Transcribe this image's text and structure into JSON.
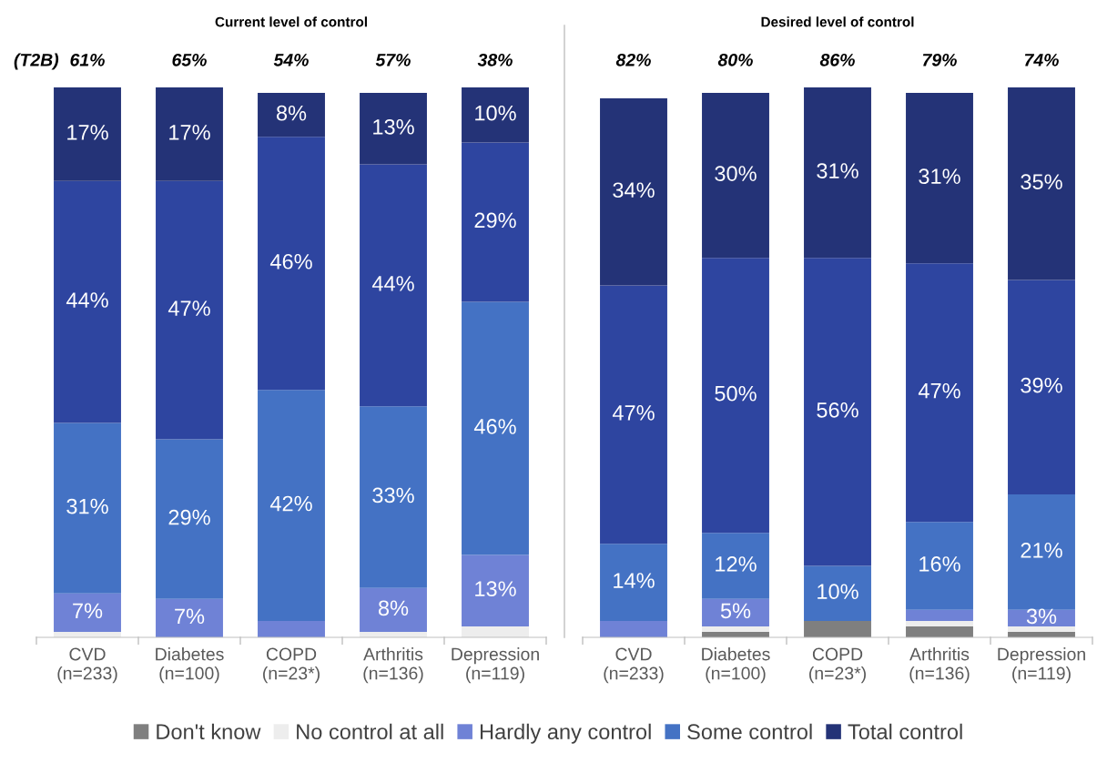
{
  "chart_data": [
    {
      "type": "bar",
      "stacked": true,
      "title": "Current level of control",
      "categories": [
        "CVD\n(n=233)",
        "Diabetes\n(n=100)",
        "COPD\n(n=23*)",
        "Arthritis\n(n=136)",
        "Depression\n(n=119)"
      ],
      "series": [
        {
          "color": "#ededed",
          "values": [
            1,
            0,
            0,
            1,
            2
          ],
          "value_labels": [
            null,
            null,
            null,
            null,
            null
          ]
        },
        {
          "color": "#6f82d6",
          "values": [
            7,
            7,
            3,
            8,
            13
          ],
          "value_labels": [
            "7%",
            "7%",
            null,
            "8%",
            "13%"
          ]
        },
        {
          "color": "#4472c4",
          "values": [
            31,
            29,
            42,
            33,
            46
          ],
          "value_labels": [
            "31%",
            "29%",
            "42%",
            "33%",
            "46%"
          ]
        },
        {
          "color": "#2e45a0",
          "values": [
            44,
            47,
            46,
            44,
            29
          ],
          "value_labels": [
            "44%",
            "47%",
            "46%",
            "44%",
            "29%"
          ]
        },
        {
          "color": "#243377",
          "values": [
            17,
            17,
            8,
            13,
            10
          ],
          "value_labels": [
            "17%",
            "17%",
            "8%",
            "13%",
            "10%"
          ]
        }
      ],
      "annotations": [
        "(T2B)",
        "61%",
        "65%",
        "54%",
        "57%",
        "38%"
      ],
      "tick_labels": "x",
      "grid": false
    },
    {
      "type": "bar",
      "stacked": true,
      "title": "Desired level of control",
      "categories": [
        "CVD\n(n=233)",
        "Diabetes\n(n=100)",
        "COPD\n(n=23*)",
        "Arthritis\n(n=136)",
        "Depression\n(n=119)"
      ],
      "series": [
        {
          "name": "Don't know",
          "color": "#7f7f7f",
          "values": [
            0,
            1,
            3,
            2,
            1
          ],
          "value_labels": [
            null,
            null,
            null,
            null,
            null
          ]
        },
        {
          "name": "No control at all",
          "color": "#ededed",
          "values": [
            0,
            1,
            0,
            1,
            1
          ],
          "value_labels": [
            null,
            null,
            null,
            null,
            null
          ]
        },
        {
          "name": "Hardly any control",
          "color": "#6f82d6",
          "values": [
            3,
            5,
            0,
            2,
            3
          ],
          "value_labels": [
            null,
            "5%",
            null,
            null,
            "3%"
          ]
        },
        {
          "name": "Some control",
          "color": "#4472c4",
          "values": [
            14,
            12,
            10,
            16,
            21
          ],
          "value_labels": [
            "14%",
            "12%",
            "10%",
            "16%",
            "21%"
          ]
        },
        {
          "color": "#2e45a0",
          "values": [
            47,
            50,
            56,
            47,
            39
          ],
          "value_labels": [
            "47%",
            "50%",
            "56%",
            "47%",
            "39%"
          ]
        },
        {
          "name": "Total control",
          "color": "#243377",
          "values": [
            34,
            30,
            31,
            31,
            35
          ],
          "value_labels": [
            "34%",
            "30%",
            "31%",
            "31%",
            "35%"
          ]
        }
      ],
      "annotations": [
        "82%",
        "80%",
        "86%",
        "79%",
        "74%"
      ],
      "tick_labels": "x",
      "grid": false,
      "legend": "bottom"
    }
  ]
}
